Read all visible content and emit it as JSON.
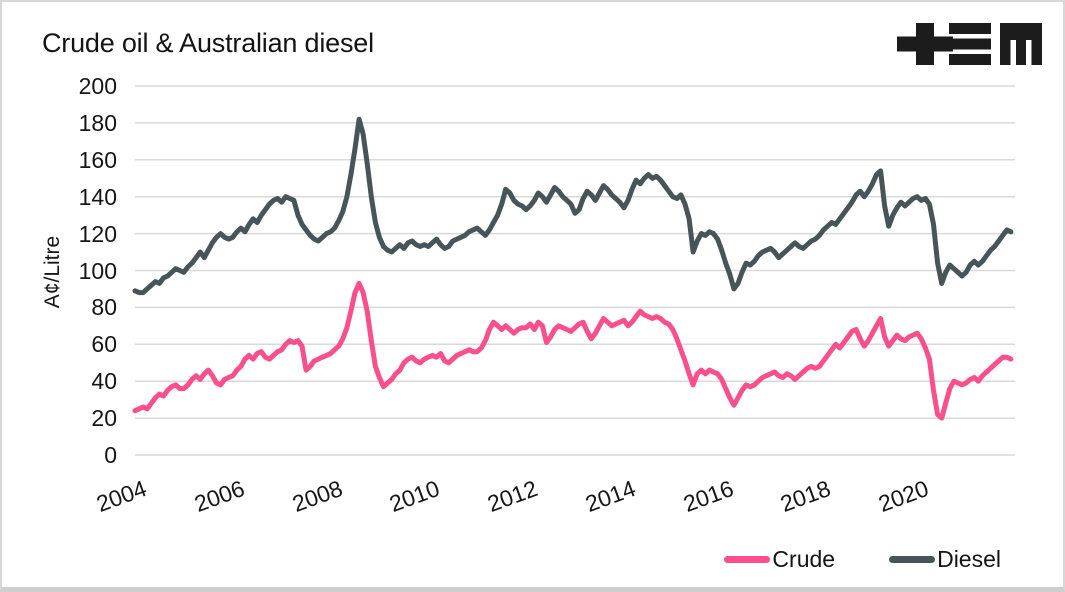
{
  "title": "Crude oil & Australian diesel",
  "logo": {
    "name": "tem-logo",
    "color": "#1c1c1c"
  },
  "colors": {
    "crude": "#F94F8D",
    "diesel": "#475559",
    "grid": "#d9d9d9",
    "text": "#161616",
    "background": "#ffffff"
  },
  "legend": {
    "items": [
      {
        "label": "Crude",
        "color": "#F94F8D"
      },
      {
        "label": "Diesel",
        "color": "#475559"
      }
    ]
  },
  "chart_data": {
    "type": "line",
    "title": "Crude oil & Australian diesel",
    "xlabel": "",
    "ylabel": "A¢/Litre",
    "ylim": [
      0,
      200
    ],
    "yticks": [
      0,
      20,
      40,
      60,
      80,
      100,
      120,
      140,
      160,
      180,
      200
    ],
    "xlim": [
      2004,
      2022
    ],
    "xticks": [
      2004,
      2006,
      2008,
      2010,
      2012,
      2014,
      2016,
      2018,
      2020
    ],
    "grid": "horizontal",
    "legend_position": "bottom-right",
    "x_start_year": 2004,
    "x_interval": "monthly",
    "series": [
      {
        "name": "Crude",
        "color": "#F94F8D",
        "values": [
          24,
          25,
          26,
          25,
          28,
          31,
          33,
          32,
          35,
          37,
          38,
          36,
          36,
          38,
          41,
          43,
          41,
          44,
          46,
          43,
          39,
          38,
          41,
          42,
          43,
          46,
          48,
          52,
          54,
          52,
          55,
          56,
          53,
          52,
          54,
          56,
          57,
          60,
          62,
          61,
          62,
          59,
          46,
          48,
          51,
          52,
          53,
          54,
          55,
          57,
          59,
          63,
          69,
          78,
          88,
          93,
          88,
          78,
          62,
          48,
          42,
          37,
          39,
          41,
          44,
          46,
          50,
          52,
          53,
          51,
          50,
          52,
          53,
          54,
          53,
          55,
          51,
          50,
          52,
          54,
          55,
          56,
          57,
          56,
          56,
          58,
          62,
          68,
          72,
          70,
          68,
          70,
          68,
          66,
          68,
          69,
          69,
          71,
          68,
          72,
          70,
          61,
          64,
          68,
          70,
          69,
          68,
          67,
          69,
          71,
          72,
          67,
          63,
          66,
          70,
          74,
          72,
          70,
          71,
          72,
          73,
          70,
          72,
          75,
          78,
          76,
          75,
          74,
          75,
          74,
          72,
          71,
          68,
          63,
          57,
          51,
          44,
          38,
          44,
          46,
          44,
          46,
          45,
          44,
          41,
          36,
          31,
          27,
          31,
          35,
          38,
          37,
          38,
          40,
          42,
          43,
          44,
          45,
          43,
          42,
          44,
          43,
          41,
          43,
          45,
          47,
          48,
          47,
          48,
          51,
          54,
          57,
          60,
          58,
          61,
          64,
          67,
          68,
          63,
          59,
          62,
          66,
          70,
          74,
          64,
          59,
          62,
          65,
          63,
          62,
          64,
          65,
          66,
          63,
          58,
          52,
          35,
          22,
          20,
          28,
          36,
          40,
          39,
          38,
          39,
          41,
          42,
          40,
          43,
          45,
          47,
          49,
          51,
          53,
          53,
          52
        ]
      },
      {
        "name": "Diesel",
        "color": "#475559",
        "values": [
          89,
          88,
          88,
          90,
          92,
          94,
          93,
          96,
          97,
          99,
          101,
          100,
          99,
          102,
          104,
          107,
          110,
          107,
          111,
          115,
          118,
          120,
          118,
          117,
          118,
          121,
          123,
          121,
          125,
          128,
          126,
          130,
          133,
          136,
          138,
          139,
          137,
          140,
          139,
          138,
          130,
          125,
          122,
          119,
          117,
          116,
          118,
          120,
          121,
          123,
          127,
          132,
          140,
          152,
          166,
          182,
          174,
          158,
          140,
          126,
          118,
          113,
          111,
          110,
          112,
          114,
          112,
          115,
          116,
          114,
          113,
          114,
          113,
          115,
          117,
          114,
          112,
          113,
          116,
          117,
          118,
          119,
          121,
          122,
          123,
          121,
          119,
          122,
          126,
          130,
          136,
          144,
          142,
          138,
          136,
          135,
          133,
          135,
          138,
          142,
          140,
          137,
          141,
          145,
          143,
          140,
          138,
          136,
          131,
          133,
          139,
          143,
          141,
          138,
          142,
          146,
          144,
          141,
          139,
          137,
          134,
          138,
          144,
          149,
          147,
          150,
          152,
          150,
          151,
          149,
          146,
          143,
          140,
          139,
          141,
          136,
          128,
          110,
          116,
          120,
          119,
          121,
          120,
          117,
          111,
          104,
          98,
          90,
          93,
          99,
          104,
          103,
          105,
          108,
          110,
          111,
          112,
          110,
          107,
          109,
          111,
          113,
          115,
          113,
          112,
          114,
          116,
          117,
          119,
          122,
          124,
          126,
          125,
          128,
          131,
          134,
          137,
          141,
          143,
          140,
          143,
          147,
          152,
          154,
          135,
          124,
          130,
          134,
          137,
          135,
          137,
          139,
          140,
          138,
          139,
          136,
          125,
          104,
          93,
          99,
          103,
          101,
          99,
          97,
          99,
          103,
          105,
          103,
          105,
          108,
          111,
          113,
          116,
          119,
          122,
          121
        ]
      }
    ]
  }
}
